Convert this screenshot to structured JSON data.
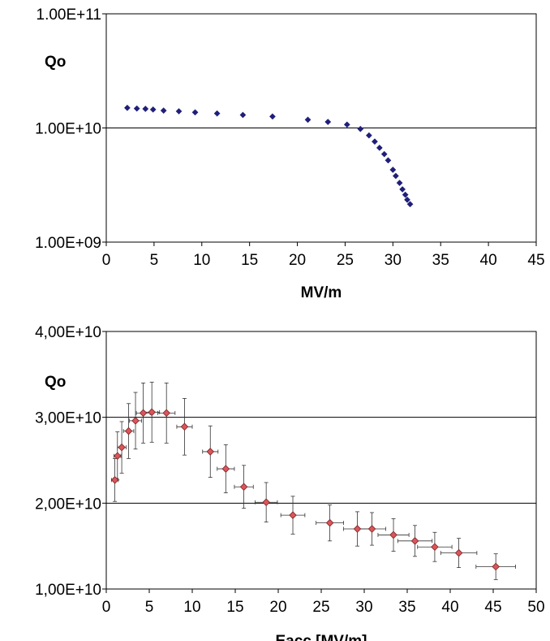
{
  "chart_data": [
    {
      "type": "scatter",
      "title": "",
      "xlabel": "MV/m",
      "ylabel": "Qo",
      "yscale": "log",
      "xlim": [
        0,
        45
      ],
      "ylim": [
        1000000000.0,
        100000000000.0
      ],
      "grid": "horizontal at 1.00E+10",
      "x_ticks": [
        "0",
        "5",
        "10",
        "15",
        "20",
        "25",
        "30",
        "35",
        "40",
        "45"
      ],
      "y_ticks": [
        "1.00E+09",
        "1.00E+10",
        "1.00E+11"
      ],
      "marker": "diamond",
      "color": "#1f1f7a",
      "points": [
        {
          "x": 2.2,
          "y": 15000000000.0
        },
        {
          "x": 3.2,
          "y": 14800000000.0
        },
        {
          "x": 4.1,
          "y": 14700000000.0
        },
        {
          "x": 4.9,
          "y": 14500000000.0
        },
        {
          "x": 6.0,
          "y": 14200000000.0
        },
        {
          "x": 7.6,
          "y": 14000000000.0
        },
        {
          "x": 9.3,
          "y": 13700000000.0
        },
        {
          "x": 11.6,
          "y": 13400000000.0
        },
        {
          "x": 14.3,
          "y": 13000000000.0
        },
        {
          "x": 17.4,
          "y": 12600000000.0
        },
        {
          "x": 21.1,
          "y": 11800000000.0
        },
        {
          "x": 23.2,
          "y": 11300000000.0
        },
        {
          "x": 25.2,
          "y": 10700000000.0
        },
        {
          "x": 26.6,
          "y": 9800000000.0
        },
        {
          "x": 27.5,
          "y": 8600000000.0
        },
        {
          "x": 28.1,
          "y": 7600000000.0
        },
        {
          "x": 28.6,
          "y": 6700000000.0
        },
        {
          "x": 29.1,
          "y": 5900000000.0
        },
        {
          "x": 29.5,
          "y": 5200000000.0
        },
        {
          "x": 30.0,
          "y": 4300000000.0
        },
        {
          "x": 30.3,
          "y": 3800000000.0
        },
        {
          "x": 30.7,
          "y": 3300000000.0
        },
        {
          "x": 31.0,
          "y": 2900000000.0
        },
        {
          "x": 31.3,
          "y": 2600000000.0
        },
        {
          "x": 31.5,
          "y": 2350000000.0
        },
        {
          "x": 31.8,
          "y": 2150000000.0
        }
      ]
    },
    {
      "type": "scatter",
      "title": "",
      "xlabel": "Eacc [MV/m]",
      "ylabel": "Qo",
      "xlim": [
        0,
        50
      ],
      "ylim": [
        10000000000.0,
        40000000000.0
      ],
      "grid": "horizontal at 2,00E+10 and 3,00E+10",
      "x_ticks": [
        "0",
        "5",
        "10",
        "15",
        "20",
        "25",
        "30",
        "35",
        "40",
        "45",
        "50"
      ],
      "y_ticks": [
        "1,00E+10",
        "2,00E+10",
        "3,00E+10",
        "4,00E+10"
      ],
      "marker": "diamond",
      "color": "#d9565a",
      "error_bars": true,
      "points": [
        {
          "x": 1.0,
          "y": 22700000000.0,
          "xerr": 0.4,
          "yerr": 2500000000.0
        },
        {
          "x": 1.3,
          "y": 25500000000.0,
          "xerr": 0.4,
          "yerr": 2800000000.0
        },
        {
          "x": 1.8,
          "y": 26500000000.0,
          "xerr": 0.5,
          "yerr": 3000000000.0
        },
        {
          "x": 2.6,
          "y": 28400000000.0,
          "xerr": 0.6,
          "yerr": 3200000000.0
        },
        {
          "x": 3.4,
          "y": 29600000000.0,
          "xerr": 0.7,
          "yerr": 3300000000.0
        },
        {
          "x": 4.3,
          "y": 30500000000.0,
          "xerr": 0.8,
          "yerr": 3500000000.0
        },
        {
          "x": 5.3,
          "y": 30600000000.0,
          "xerr": 0.9,
          "yerr": 3500000000.0
        },
        {
          "x": 7.0,
          "y": 30500000000.0,
          "xerr": 1.0,
          "yerr": 3500000000.0
        },
        {
          "x": 9.1,
          "y": 28900000000.0,
          "xerr": 0.9,
          "yerr": 3300000000.0
        },
        {
          "x": 12.1,
          "y": 26000000000.0,
          "xerr": 0.9,
          "yerr": 3000000000.0
        },
        {
          "x": 13.9,
          "y": 24000000000.0,
          "xerr": 1.0,
          "yerr": 2800000000.0
        },
        {
          "x": 16.0,
          "y": 21900000000.0,
          "xerr": 1.1,
          "yerr": 2500000000.0
        },
        {
          "x": 18.6,
          "y": 20100000000.0,
          "xerr": 1.3,
          "yerr": 2300000000.0
        },
        {
          "x": 21.7,
          "y": 18600000000.0,
          "xerr": 1.4,
          "yerr": 2200000000.0
        },
        {
          "x": 26.0,
          "y": 17700000000.0,
          "xerr": 1.6,
          "yerr": 2100000000.0
        },
        {
          "x": 29.2,
          "y": 17000000000.0,
          "xerr": 1.6,
          "yerr": 2000000000.0
        },
        {
          "x": 30.9,
          "y": 17000000000.0,
          "xerr": 1.6,
          "yerr": 1900000000.0
        },
        {
          "x": 33.4,
          "y": 16300000000.0,
          "xerr": 1.8,
          "yerr": 1900000000.0
        },
        {
          "x": 35.9,
          "y": 15600000000.0,
          "xerr": 2.0,
          "yerr": 1800000000.0
        },
        {
          "x": 38.2,
          "y": 14900000000.0,
          "xerr": 2.0,
          "yerr": 1700000000.0
        },
        {
          "x": 41.0,
          "y": 14200000000.0,
          "xerr": 2.1,
          "yerr": 1700000000.0
        },
        {
          "x": 45.3,
          "y": 12600000000.0,
          "xerr": 2.3,
          "yerr": 1500000000.0
        }
      ]
    }
  ]
}
